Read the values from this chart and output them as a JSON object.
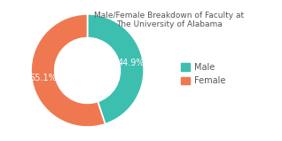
{
  "title": "Male/Female Breakdown of Faculty at\nThe University of Alabama",
  "slices": [
    44.9,
    55.1
  ],
  "labels": [
    "Male",
    "Female"
  ],
  "colors": [
    "#3dbfb0",
    "#f07850"
  ],
  "text_colors": [
    "white",
    "white"
  ],
  "pct_labels": [
    "44.9%",
    "55.1%"
  ],
  "legend_labels": [
    "Male",
    "Female"
  ],
  "title_fontsize": 6.5,
  "label_fontsize": 7,
  "legend_fontsize": 7,
  "background_color": "#ffffff",
  "donut_width": 0.42
}
